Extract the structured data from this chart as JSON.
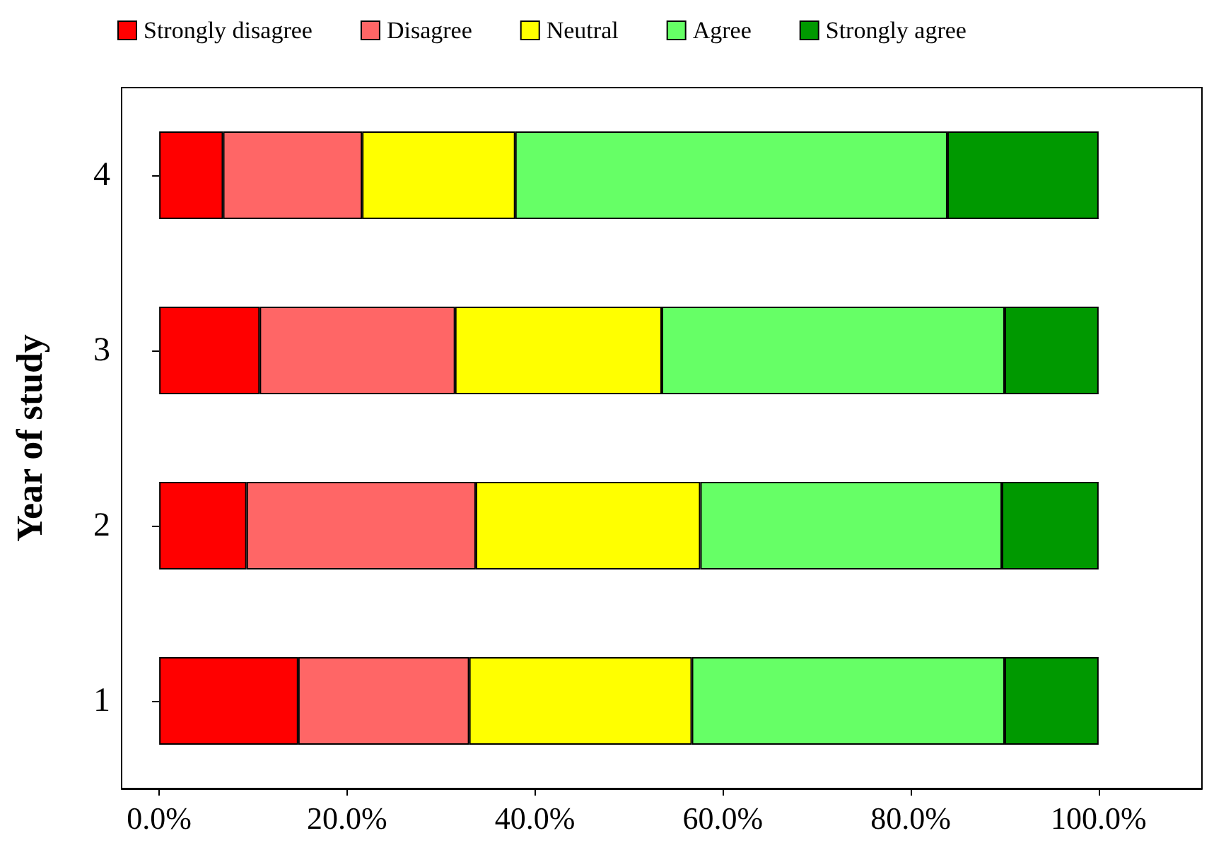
{
  "chart_data": {
    "type": "bar",
    "orientation": "horizontal",
    "stacked": true,
    "ylabel": "Year of study",
    "categories": [
      "4",
      "3",
      "2",
      "1"
    ],
    "series": [
      {
        "name": "Strongly disagree",
        "color": "#ff0000",
        "values": [
          6.8,
          10.7,
          9.3,
          14.8
        ]
      },
      {
        "name": "Disagree",
        "color": "#ff6666",
        "values": [
          14.8,
          20.8,
          24.4,
          18.2
        ]
      },
      {
        "name": "Neutral",
        "color": "#ffff00",
        "values": [
          16.3,
          22.0,
          23.9,
          23.7
        ]
      },
      {
        "name": "Agree",
        "color": "#66ff66",
        "values": [
          46.0,
          36.5,
          32.1,
          33.3
        ]
      },
      {
        "name": "Strongly agree",
        "color": "#009900",
        "values": [
          16.1,
          10.0,
          10.3,
          10.0
        ]
      }
    ],
    "xlim": [
      -4,
      111
    ],
    "xticks": [
      {
        "value": 0,
        "label": "0.0%"
      },
      {
        "value": 20,
        "label": "20.0%"
      },
      {
        "value": 40,
        "label": "40.0%"
      },
      {
        "value": 60,
        "label": "60.0%"
      },
      {
        "value": 80,
        "label": "80.0%"
      },
      {
        "value": 100,
        "label": "100.0%"
      }
    ],
    "grid": false,
    "legend": "top"
  }
}
